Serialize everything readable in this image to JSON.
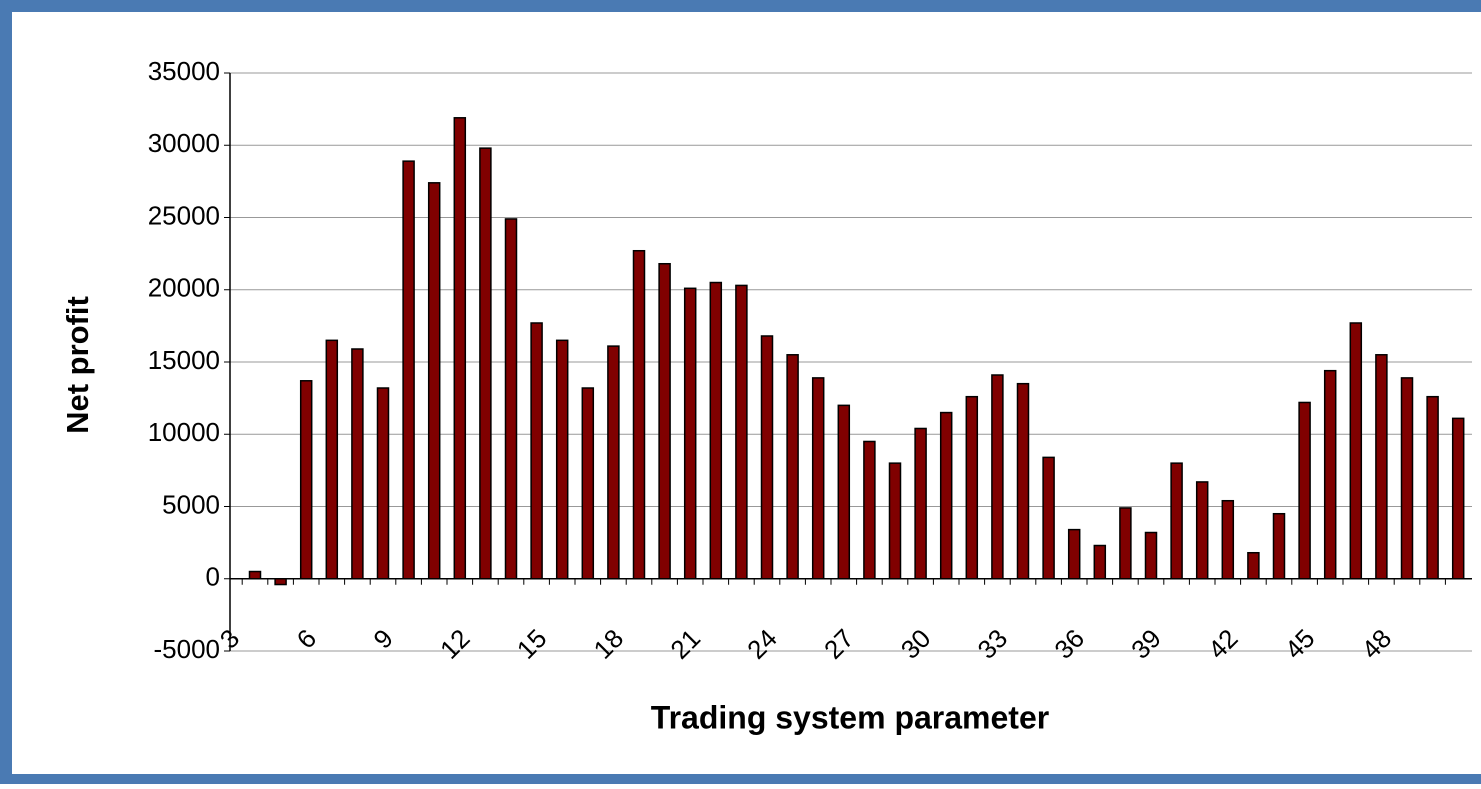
{
  "chart_data": {
    "type": "bar",
    "x_label": "Trading system parameter",
    "y_label": "Net profit",
    "categories": [
      3,
      null,
      null,
      6,
      null,
      null,
      9,
      null,
      null,
      12,
      null,
      null,
      15,
      null,
      null,
      18,
      null,
      null,
      21,
      null,
      null,
      24,
      null,
      null,
      27,
      null,
      null,
      30,
      null,
      null,
      33,
      null,
      null,
      36,
      null,
      null,
      39,
      null,
      null,
      42,
      null,
      null,
      45,
      null,
      null,
      48,
      null,
      null
    ],
    "values": [
      500,
      -400,
      13700,
      16500,
      15900,
      13200,
      28900,
      27400,
      31900,
      29800,
      24900,
      17700,
      16500,
      13200,
      16100,
      22700,
      21800,
      20100,
      20500,
      20300,
      16800,
      15500,
      13900,
      12000,
      9500,
      8000,
      10400,
      11500,
      12600,
      14100,
      13500,
      8400,
      3400,
      2300,
      4900,
      3200,
      8000,
      6700,
      5400,
      1800,
      4500,
      12200,
      14400,
      17700,
      15500,
      13900,
      12600,
      11100
    ],
    "color": "#800000",
    "ylim": [
      -5000,
      35000
    ],
    "yticks": [
      -5000,
      0,
      5000,
      10000,
      15000,
      20000,
      25000,
      30000,
      35000
    ],
    "grid": true
  }
}
